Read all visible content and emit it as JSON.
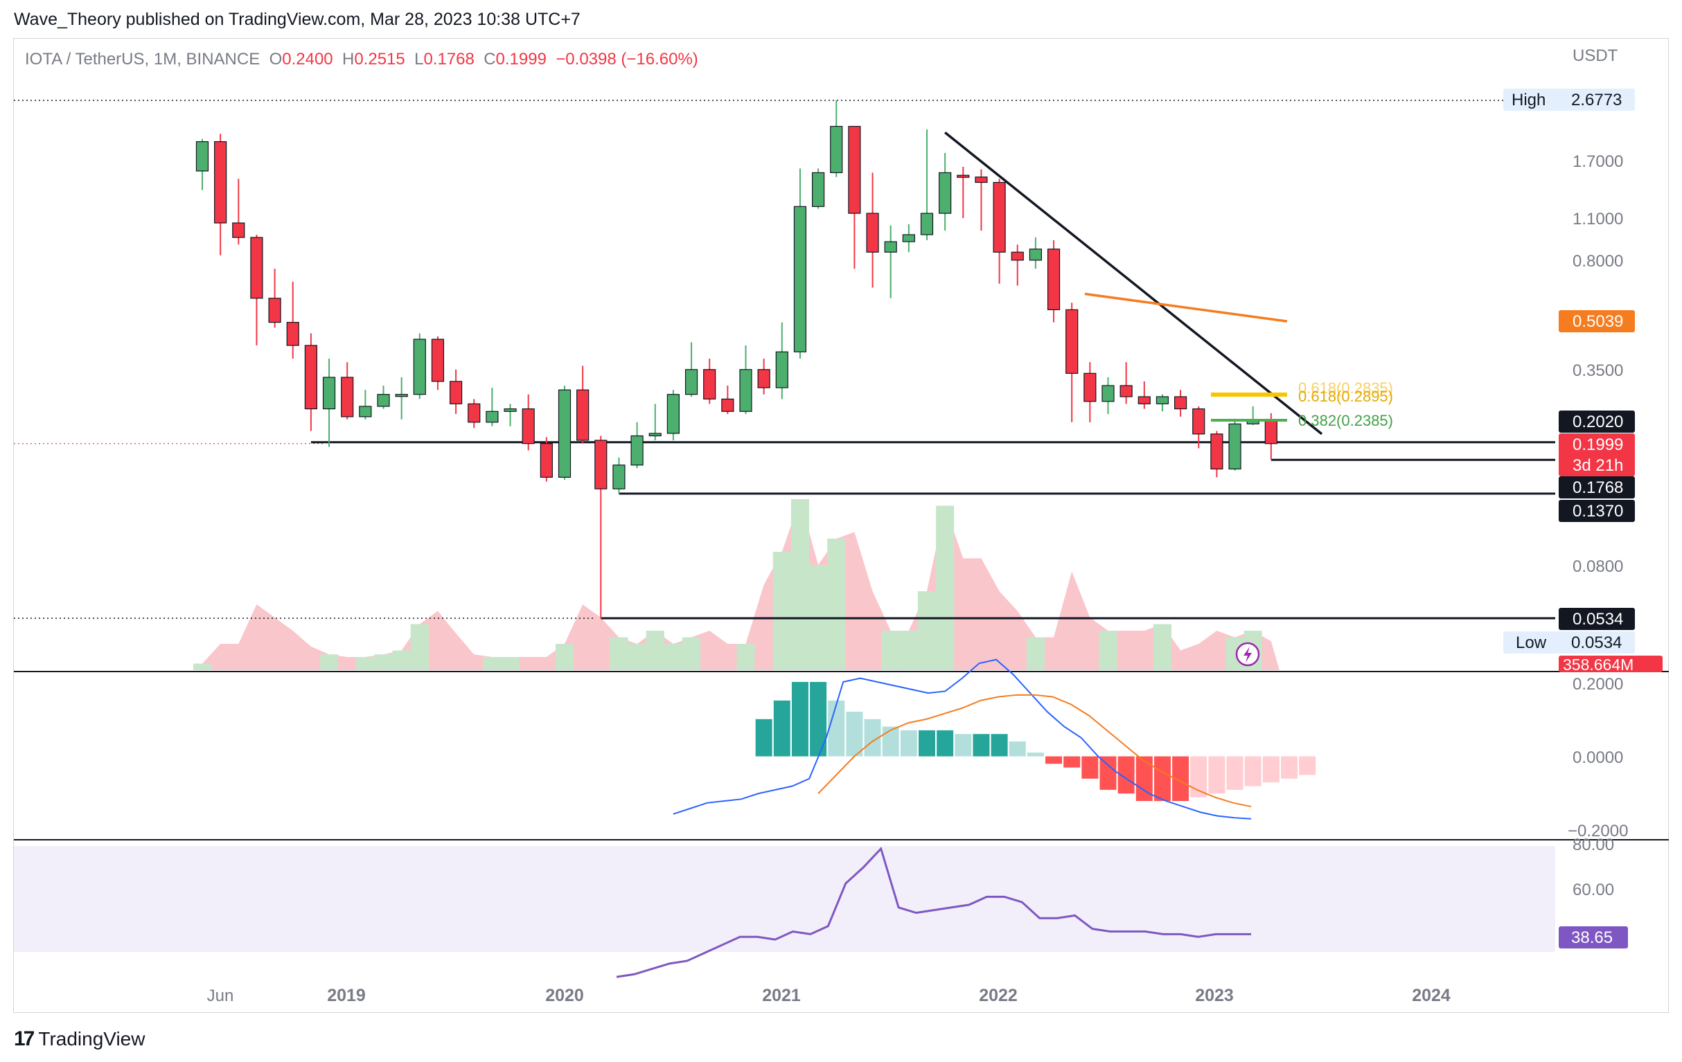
{
  "header": {
    "published_by": "Wave_Theory published on TradingView.com, Mar 28, 2023 10:38 UTC+7"
  },
  "legend": {
    "symbol": "IOTA / TetherUS, 1M, BINANCE",
    "open_label": "O",
    "open": "0.2400",
    "high_label": "H",
    "high": "0.2515",
    "low_label": "L",
    "low": "0.1768",
    "close_label": "C",
    "close": "0.1999",
    "change": "−0.0398 (−16.60%)"
  },
  "price_axis": {
    "currency": "USDT",
    "ticks": [
      "2.6773",
      "1.7000",
      "1.1000",
      "0.8000",
      "0.5039",
      "0.3500",
      "0.2020",
      "0.1999",
      "0.1768",
      "0.1370",
      "0.0800",
      "0.0534"
    ]
  },
  "badges": {
    "high_label": "High",
    "high_value": "2.6773",
    "low_label": "Low",
    "low_value": "0.0534",
    "ma_value": "0.5039",
    "level_1": "0.2020",
    "last_price": "0.1999",
    "countdown": "3d 21h",
    "level_2": "0.1768",
    "level_3": "0.1370",
    "level_low": "0.0534",
    "volume": "358.664M"
  },
  "fib": {
    "f618": "0.618(0.2895)",
    "f618_shadow": "0.618(0.2835)",
    "f382": "0.382(0.2385)"
  },
  "macd_axis": [
    "0.2000",
    "0.0000",
    "−0.2000"
  ],
  "rsi_axis": [
    "80.00",
    "60.00"
  ],
  "rsi_value": "38.65",
  "time_axis": [
    "Jun",
    "2019",
    "2020",
    "2021",
    "2022",
    "2023",
    "2024"
  ],
  "colors": {
    "up": "#4caf6e",
    "down": "#f23645",
    "ma": "#f57c1f",
    "fib618": "#f7c600",
    "fib382": "#4caf50",
    "macd": "#2962ff",
    "signal": "#f57c1f",
    "rsi": "#7e57c2",
    "black": "#131722"
  },
  "brand": {
    "name": "TradingView"
  },
  "chart_data": {
    "type": "candlestick",
    "title": "IOTA / TetherUS, 1M, BINANCE",
    "y_scale": "log",
    "ylim": [
      0.0534,
      2.6773
    ],
    "x_labels": [
      "Jun",
      "2019",
      "2020",
      "2021",
      "2022",
      "2023",
      "2024"
    ],
    "candles": [
      {
        "o": 1.57,
        "h": 2.0,
        "l": 1.36,
        "c": 1.96
      },
      {
        "o": 1.96,
        "h": 2.08,
        "l": 0.83,
        "c": 1.06
      },
      {
        "o": 1.06,
        "h": 1.48,
        "l": 0.9,
        "c": 0.95
      },
      {
        "o": 0.95,
        "h": 0.97,
        "l": 0.42,
        "c": 0.6
      },
      {
        "o": 0.6,
        "h": 0.75,
        "l": 0.48,
        "c": 0.5
      },
      {
        "o": 0.5,
        "h": 0.68,
        "l": 0.38,
        "c": 0.42
      },
      {
        "o": 0.42,
        "h": 0.46,
        "l": 0.22,
        "c": 0.26
      },
      {
        "o": 0.26,
        "h": 0.38,
        "l": 0.195,
        "c": 0.33
      },
      {
        "o": 0.33,
        "h": 0.37,
        "l": 0.24,
        "c": 0.245
      },
      {
        "o": 0.245,
        "h": 0.3,
        "l": 0.24,
        "c": 0.265
      },
      {
        "o": 0.265,
        "h": 0.31,
        "l": 0.26,
        "c": 0.29
      },
      {
        "o": 0.29,
        "h": 0.33,
        "l": 0.24,
        "c": 0.29
      },
      {
        "o": 0.29,
        "h": 0.46,
        "l": 0.28,
        "c": 0.44
      },
      {
        "o": 0.44,
        "h": 0.45,
        "l": 0.3,
        "c": 0.32
      },
      {
        "o": 0.32,
        "h": 0.35,
        "l": 0.25,
        "c": 0.27
      },
      {
        "o": 0.27,
        "h": 0.28,
        "l": 0.225,
        "c": 0.235
      },
      {
        "o": 0.235,
        "h": 0.305,
        "l": 0.228,
        "c": 0.255
      },
      {
        "o": 0.255,
        "h": 0.27,
        "l": 0.228,
        "c": 0.26
      },
      {
        "o": 0.26,
        "h": 0.29,
        "l": 0.19,
        "c": 0.2
      },
      {
        "o": 0.2,
        "h": 0.21,
        "l": 0.15,
        "c": 0.155
      },
      {
        "o": 0.155,
        "h": 0.31,
        "l": 0.152,
        "c": 0.3
      },
      {
        "o": 0.3,
        "h": 0.36,
        "l": 0.2,
        "c": 0.205
      },
      {
        "o": 0.205,
        "h": 0.212,
        "l": 0.0534,
        "c": 0.142
      },
      {
        "o": 0.142,
        "h": 0.18,
        "l": 0.137,
        "c": 0.17
      },
      {
        "o": 0.17,
        "h": 0.235,
        "l": 0.166,
        "c": 0.212
      },
      {
        "o": 0.212,
        "h": 0.27,
        "l": 0.205,
        "c": 0.216
      },
      {
        "o": 0.216,
        "h": 0.3,
        "l": 0.205,
        "c": 0.29
      },
      {
        "o": 0.29,
        "h": 0.43,
        "l": 0.285,
        "c": 0.35
      },
      {
        "o": 0.35,
        "h": 0.38,
        "l": 0.27,
        "c": 0.28
      },
      {
        "o": 0.28,
        "h": 0.31,
        "l": 0.25,
        "c": 0.255
      },
      {
        "o": 0.255,
        "h": 0.42,
        "l": 0.25,
        "c": 0.35
      },
      {
        "o": 0.35,
        "h": 0.38,
        "l": 0.29,
        "c": 0.305
      },
      {
        "o": 0.305,
        "h": 0.5,
        "l": 0.28,
        "c": 0.4
      },
      {
        "o": 0.4,
        "h": 1.6,
        "l": 0.38,
        "c": 1.2
      },
      {
        "o": 1.2,
        "h": 1.6,
        "l": 1.18,
        "c": 1.55
      },
      {
        "o": 1.55,
        "h": 2.6773,
        "l": 1.5,
        "c": 2.2
      },
      {
        "o": 2.2,
        "h": 2.2,
        "l": 0.75,
        "c": 1.14
      },
      {
        "o": 1.14,
        "h": 1.55,
        "l": 0.65,
        "c": 0.85
      },
      {
        "o": 0.85,
        "h": 1.04,
        "l": 0.6,
        "c": 0.92
      },
      {
        "o": 0.92,
        "h": 1.05,
        "l": 0.85,
        "c": 0.97
      },
      {
        "o": 0.97,
        "h": 2.15,
        "l": 0.93,
        "c": 1.14
      },
      {
        "o": 1.14,
        "h": 1.8,
        "l": 1.0,
        "c": 1.55
      },
      {
        "o": 1.52,
        "h": 1.62,
        "l": 1.1,
        "c": 1.5
      },
      {
        "o": 1.5,
        "h": 1.59,
        "l": 1.0,
        "c": 1.44
      },
      {
        "o": 1.44,
        "h": 1.48,
        "l": 0.67,
        "c": 0.85
      },
      {
        "o": 0.85,
        "h": 0.9,
        "l": 0.66,
        "c": 0.8
      },
      {
        "o": 0.8,
        "h": 0.95,
        "l": 0.75,
        "c": 0.87
      },
      {
        "o": 0.87,
        "h": 0.93,
        "l": 0.5,
        "c": 0.55
      },
      {
        "o": 0.55,
        "h": 0.58,
        "l": 0.235,
        "c": 0.34
      },
      {
        "o": 0.34,
        "h": 0.37,
        "l": 0.235,
        "c": 0.275
      },
      {
        "o": 0.275,
        "h": 0.33,
        "l": 0.25,
        "c": 0.31
      },
      {
        "o": 0.31,
        "h": 0.37,
        "l": 0.27,
        "c": 0.285
      },
      {
        "o": 0.285,
        "h": 0.32,
        "l": 0.26,
        "c": 0.27
      },
      {
        "o": 0.27,
        "h": 0.29,
        "l": 0.255,
        "c": 0.285
      },
      {
        "o": 0.285,
        "h": 0.3,
        "l": 0.245,
        "c": 0.26
      },
      {
        "o": 0.26,
        "h": 0.265,
        "l": 0.193,
        "c": 0.215
      },
      {
        "o": 0.215,
        "h": 0.22,
        "l": 0.155,
        "c": 0.165
      },
      {
        "o": 0.165,
        "h": 0.24,
        "l": 0.163,
        "c": 0.232
      },
      {
        "o": 0.232,
        "h": 0.265,
        "l": 0.23,
        "c": 0.24
      },
      {
        "o": 0.24,
        "h": 0.2515,
        "l": 0.1768,
        "c": 0.1999
      }
    ],
    "volume_bars": [
      0.05,
      0.2,
      0.2,
      0.5,
      0.4,
      0.3,
      0.18,
      0.12,
      0.1,
      0.1,
      0.12,
      0.15,
      0.35,
      0.45,
      0.28,
      0.12,
      0.1,
      0.1,
      0.1,
      0.1,
      0.2,
      0.5,
      0.4,
      0.25,
      0.2,
      0.3,
      0.2,
      0.25,
      0.3,
      0.2,
      0.2,
      0.65,
      0.9,
      1.3,
      0.8,
      1.0,
      1.05,
      0.6,
      0.3,
      0.3,
      0.6,
      1.25,
      0.85,
      0.85,
      0.6,
      0.45,
      0.25,
      0.25,
      0.75,
      0.4,
      0.3,
      0.3,
      0.3,
      0.35,
      0.15,
      0.2,
      0.3,
      0.25,
      0.3,
      0.22
    ],
    "ma_line": {
      "from": 0.62,
      "to": 0.5039
    },
    "trendline": {
      "from": 2.1,
      "to": 0.215
    },
    "support_levels": [
      0.202,
      0.1768,
      0.137,
      0.0534
    ],
    "fib_levels": [
      {
        "ratio": "0.618",
        "value": 0.2895
      },
      {
        "ratio": "0.382",
        "value": 0.2385
      }
    ],
    "macd_ylim": [
      -0.2,
      0.2
    ],
    "macd_line": [
      -0.155,
      -0.14,
      -0.125,
      -0.12,
      -0.115,
      -0.1,
      -0.09,
      -0.08,
      -0.06,
      0.05,
      0.2,
      0.21,
      0.2,
      0.19,
      0.18,
      0.17,
      0.175,
      0.21,
      0.25,
      0.26,
      0.22,
      0.17,
      0.12,
      0.08,
      0.05,
      0.0,
      -0.04,
      -0.07,
      -0.1,
      -0.12,
      -0.135,
      -0.15,
      -0.16,
      -0.165,
      -0.168
    ],
    "signal_line": [
      -0.1,
      -0.05,
      0.0,
      0.04,
      0.07,
      0.09,
      0.1,
      0.115,
      0.13,
      0.15,
      0.16,
      0.165,
      0.165,
      0.16,
      0.14,
      0.11,
      0.07,
      0.03,
      -0.01,
      -0.04,
      -0.065,
      -0.09,
      -0.11,
      -0.125,
      -0.135
    ],
    "macd_hist": [
      0.1,
      0.15,
      0.2,
      0.2,
      0.15,
      0.12,
      0.1,
      0.08,
      0.07,
      0.07,
      0.07,
      0.06,
      0.06,
      0.06,
      0.04,
      0.01,
      -0.02,
      -0.03,
      -0.06,
      -0.09,
      -0.1,
      -0.12,
      -0.12,
      -0.12,
      -0.11,
      -0.1,
      -0.09,
      -0.08,
      -0.07,
      -0.06,
      -0.05
    ],
    "rsi_ylim": [
      30,
      80
    ],
    "rsi_line": [
      31,
      32,
      34,
      36,
      37,
      40,
      43,
      46,
      46,
      45,
      48,
      47,
      50,
      66,
      72,
      79,
      57,
      55,
      56,
      57,
      58,
      61,
      61,
      59,
      53,
      53,
      54,
      49,
      48,
      48,
      48,
      47,
      47,
      46,
      47,
      47,
      47
    ],
    "rsi_band": [
      30,
      70
    ]
  }
}
